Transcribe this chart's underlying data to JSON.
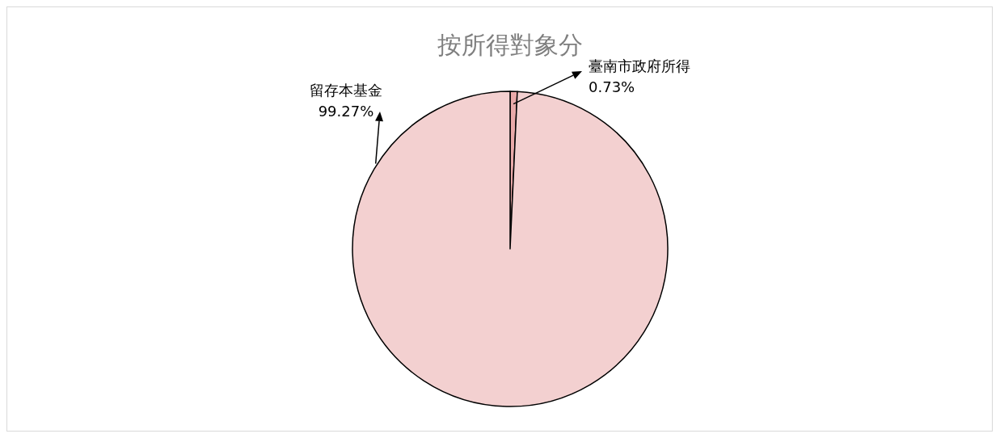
{
  "chart_data": {
    "type": "pie",
    "title": "按所得對象分",
    "categories": [
      "臺南市政府所得",
      "留存本基金"
    ],
    "values": [
      0.73,
      99.27
    ],
    "colors": [
      "#e9a9a9",
      "#f3d0d0"
    ],
    "value_labels": [
      "0.73%",
      "99.27%"
    ]
  }
}
